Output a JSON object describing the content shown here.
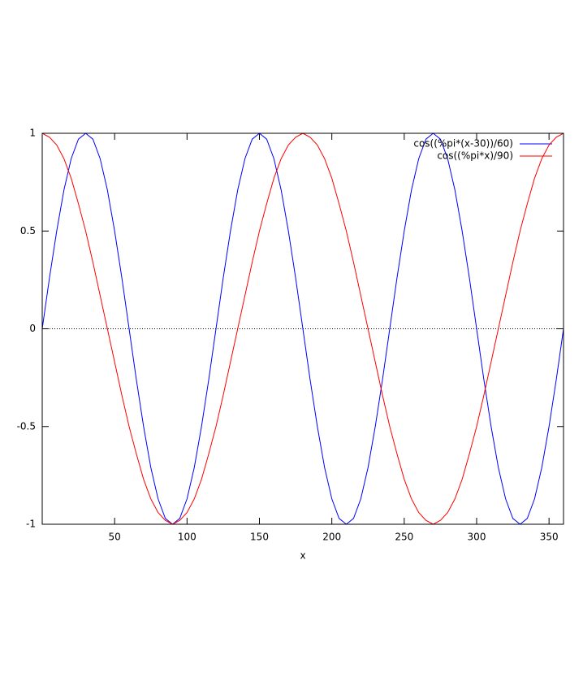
{
  "chart_data": {
    "type": "line",
    "xlabel": "x",
    "x": [
      0,
      5,
      10,
      15,
      20,
      25,
      30,
      35,
      40,
      45,
      50,
      55,
      60,
      65,
      70,
      75,
      80,
      85,
      90,
      95,
      100,
      105,
      110,
      115,
      120,
      125,
      130,
      135,
      140,
      145,
      150,
      155,
      160,
      165,
      170,
      175,
      180,
      185,
      190,
      195,
      200,
      205,
      210,
      215,
      220,
      225,
      230,
      235,
      240,
      245,
      250,
      255,
      260,
      265,
      270,
      275,
      280,
      285,
      290,
      295,
      300,
      305,
      310,
      315,
      320,
      325,
      330,
      335,
      340,
      345,
      350,
      355,
      360
    ],
    "series": [
      {
        "name": "cos((%pi*(x-30))/60)",
        "color": "#0000ff",
        "values": [
          0,
          0.26,
          0.5,
          0.71,
          0.87,
          0.97,
          1,
          0.97,
          0.87,
          0.71,
          0.5,
          0.26,
          0,
          -0.26,
          -0.5,
          -0.71,
          -0.87,
          -0.97,
          -1,
          -0.97,
          -0.87,
          -0.71,
          -0.5,
          -0.26,
          0,
          0.26,
          0.5,
          0.71,
          0.87,
          0.97,
          1,
          0.97,
          0.87,
          0.71,
          0.5,
          0.26,
          0,
          -0.26,
          -0.5,
          -0.71,
          -0.87,
          -0.97,
          -1,
          -0.97,
          -0.87,
          -0.71,
          -0.5,
          -0.26,
          0,
          0.26,
          0.5,
          0.71,
          0.87,
          0.97,
          1,
          0.97,
          0.87,
          0.71,
          0.5,
          0.26,
          0,
          -0.26,
          -0.5,
          -0.71,
          -0.87,
          -0.97,
          -1,
          -0.97,
          -0.87,
          -0.71,
          -0.5,
          -0.26,
          0
        ]
      },
      {
        "name": "cos((%pi*x)/90)",
        "color": "#ff0000",
        "values": [
          1,
          0.98,
          0.94,
          0.87,
          0.77,
          0.64,
          0.5,
          0.34,
          0.17,
          0,
          -0.17,
          -0.34,
          -0.5,
          -0.64,
          -0.77,
          -0.87,
          -0.94,
          -0.98,
          -1,
          -0.98,
          -0.94,
          -0.87,
          -0.77,
          -0.64,
          -0.5,
          -0.34,
          -0.17,
          0,
          0.17,
          0.34,
          0.5,
          0.64,
          0.77,
          0.87,
          0.94,
          0.98,
          1,
          0.98,
          0.94,
          0.87,
          0.77,
          0.64,
          0.5,
          0.34,
          0.17,
          0,
          -0.17,
          -0.34,
          -0.5,
          -0.64,
          -0.77,
          -0.87,
          -0.94,
          -0.98,
          -1,
          -0.98,
          -0.94,
          -0.87,
          -0.77,
          -0.64,
          -0.5,
          -0.34,
          -0.17,
          0,
          0.17,
          0.34,
          0.5,
          0.64,
          0.77,
          0.87,
          0.94,
          0.98,
          1
        ]
      }
    ],
    "xlim": [
      0,
      360
    ],
    "xticks": [
      50,
      100,
      150,
      200,
      250,
      300,
      350
    ],
    "ylim": [
      -1,
      1
    ],
    "yticks": [
      -1,
      -0.5,
      0,
      0.5,
      1
    ],
    "zero_axis": true,
    "legend": "top-right"
  }
}
